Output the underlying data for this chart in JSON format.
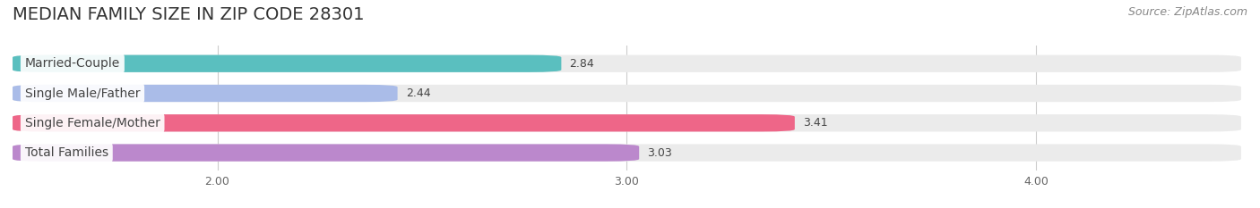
{
  "title": "MEDIAN FAMILY SIZE IN ZIP CODE 28301",
  "source": "Source: ZipAtlas.com",
  "categories": [
    "Married-Couple",
    "Single Male/Father",
    "Single Female/Mother",
    "Total Families"
  ],
  "values": [
    2.84,
    2.44,
    3.41,
    3.03
  ],
  "bar_colors": [
    "#5ABFBF",
    "#AABCE8",
    "#EE6688",
    "#BB88CC"
  ],
  "bar_height": 0.58,
  "xmin": 1.5,
  "xmax": 4.5,
  "xticks": [
    2.0,
    3.0,
    4.0
  ],
  "xtick_labels": [
    "2.00",
    "3.00",
    "4.00"
  ],
  "background_color": "#ffffff",
  "bar_background_color": "#ebebeb",
  "title_fontsize": 14,
  "source_fontsize": 9,
  "label_fontsize": 10,
  "value_fontsize": 9
}
